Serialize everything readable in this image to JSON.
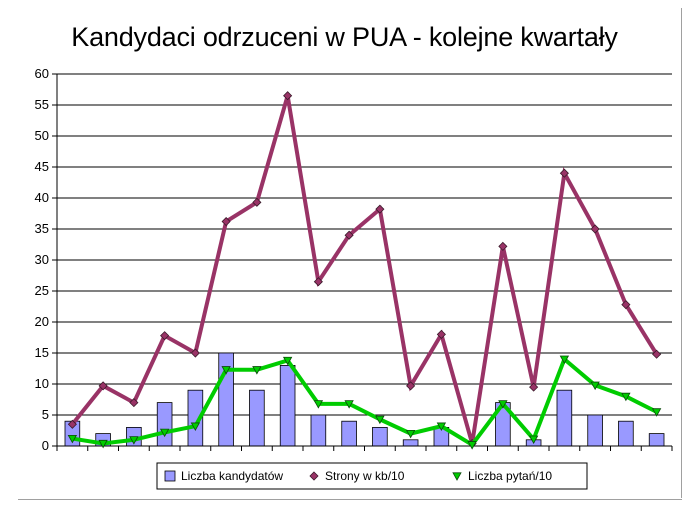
{
  "chart_data": {
    "type": "bar",
    "title": "Kandydaci odrzuceni w PUA - kolejne kwartały",
    "xlabel": "",
    "ylabel": "",
    "ylim": [
      0,
      60
    ],
    "yticks": [
      0,
      5,
      10,
      15,
      20,
      25,
      30,
      35,
      40,
      45,
      50,
      55,
      60
    ],
    "grid": true,
    "legend_position": "bottom",
    "n_points": 20,
    "series": [
      {
        "name": "Liczba kandydatów",
        "type": "bar",
        "color": "#9999ff",
        "values": [
          4,
          2,
          3,
          7,
          9,
          15,
          9,
          13,
          5,
          4,
          3,
          1,
          3,
          0,
          7,
          1,
          9,
          5,
          4,
          2
        ]
      },
      {
        "name": "Strony w kb/10",
        "type": "line",
        "marker": "diamond",
        "color": "#993366",
        "values": [
          3.5,
          9.7,
          7.0,
          17.8,
          15.0,
          36.2,
          39.3,
          56.5,
          26.5,
          34.0,
          38.2,
          9.7,
          18.0,
          0.4,
          32.2,
          9.5,
          44.0,
          35.0,
          22.8,
          14.8
        ]
      },
      {
        "name": "Liczba pytań/10",
        "type": "line",
        "marker": "triangle-down",
        "color": "#00cc00",
        "values": [
          1.2,
          0.4,
          1.0,
          2.2,
          3.2,
          12.3,
          12.3,
          13.8,
          6.8,
          6.8,
          4.3,
          2.0,
          3.2,
          0.2,
          6.8,
          1.1,
          14.0,
          9.8,
          8.0,
          5.5
        ]
      }
    ]
  }
}
